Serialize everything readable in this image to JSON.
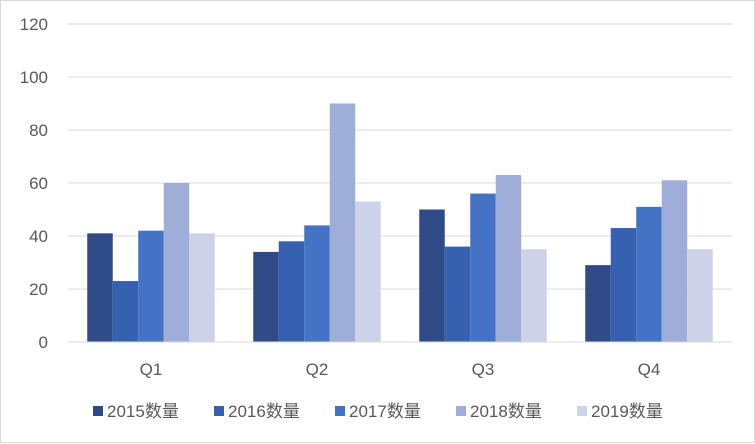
{
  "chart_data": {
    "type": "bar",
    "categories": [
      "Q1",
      "Q2",
      "Q3",
      "Q4"
    ],
    "series": [
      {
        "name": "2015数量",
        "values": [
          41,
          34,
          50,
          29
        ],
        "color": "#2e4a87"
      },
      {
        "name": "2016数量",
        "values": [
          23,
          38,
          36,
          43
        ],
        "color": "#3561b0"
      },
      {
        "name": "2017数量",
        "values": [
          42,
          44,
          56,
          51
        ],
        "color": "#4472c4"
      },
      {
        "name": "2018数量",
        "values": [
          60,
          90,
          63,
          61
        ],
        "color": "#9eaed8"
      },
      {
        "name": "2019数量",
        "values": [
          41,
          53,
          35,
          35
        ],
        "color": "#cdd2e9"
      }
    ],
    "ylim": [
      0,
      120
    ],
    "yticks": [
      "0",
      "20",
      "40",
      "60",
      "80",
      "100",
      "120"
    ],
    "grid": true,
    "legend": "bottom",
    "title": "",
    "xlabel": "",
    "ylabel": ""
  }
}
